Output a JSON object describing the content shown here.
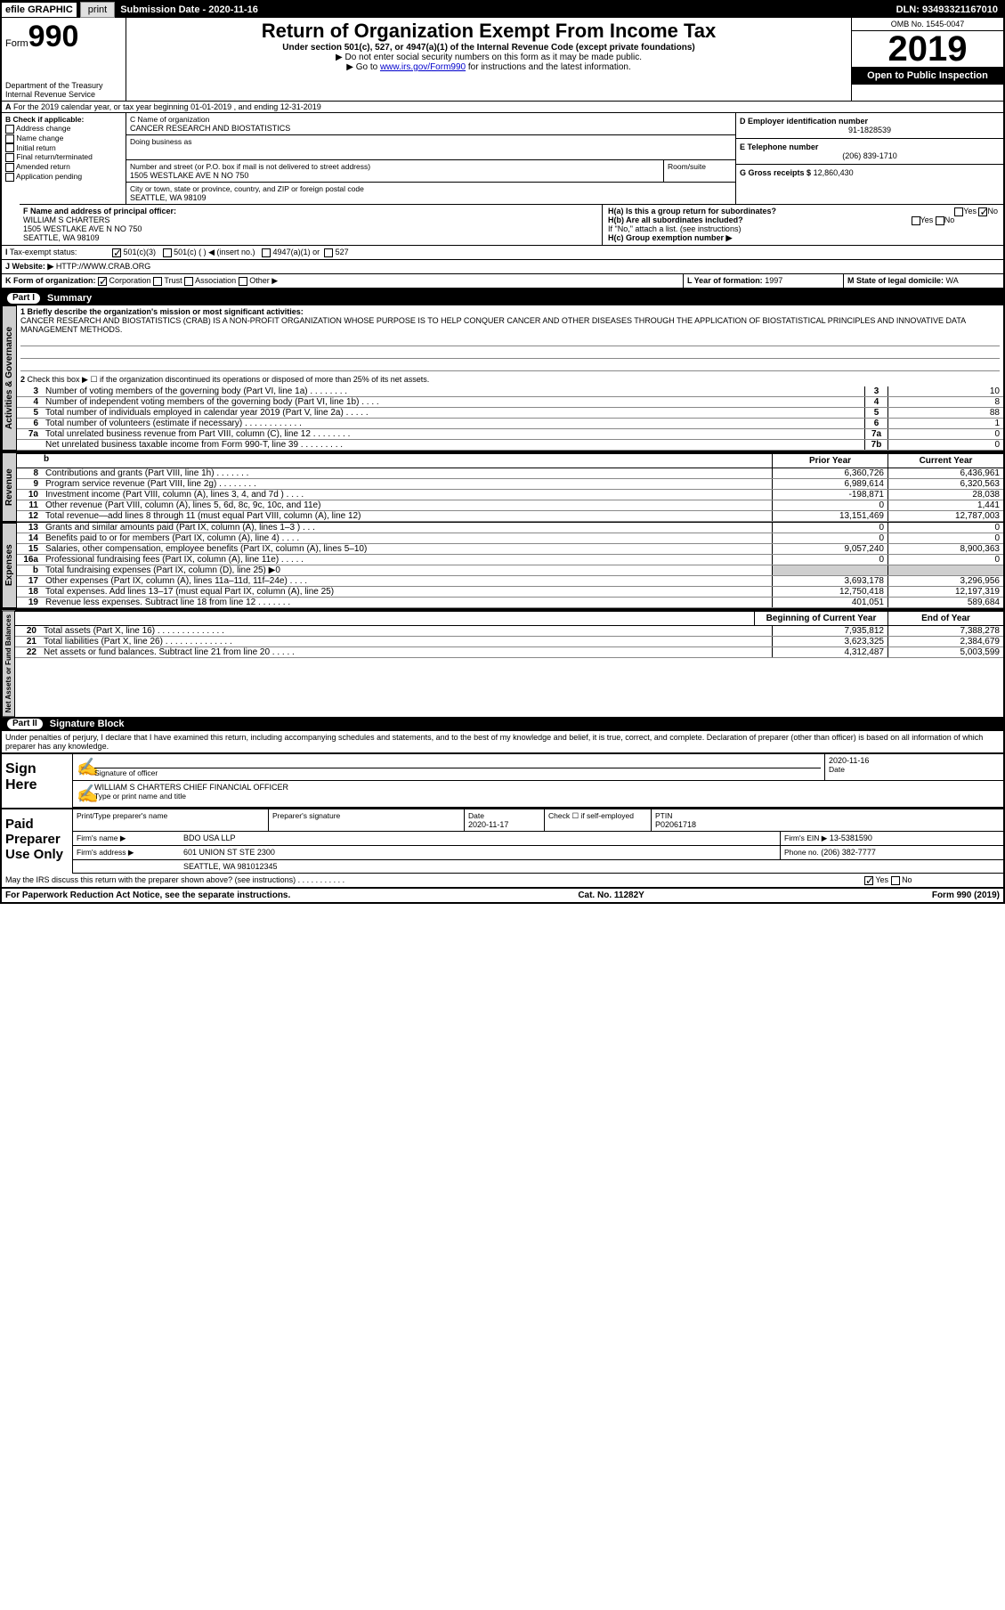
{
  "topbar": {
    "efile": "efile GRAPHIC",
    "print": "print",
    "subdate_label": "Submission Date -",
    "subdate": "2020-11-16",
    "dln": "DLN: 93493321167010"
  },
  "header": {
    "form_label": "Form",
    "form_number": "990",
    "dept": "Department of the Treasury",
    "irs": "Internal Revenue Service",
    "title": "Return of Organization Exempt From Income Tax",
    "subtitle": "Under section 501(c), 527, or 4947(a)(1) of the Internal Revenue Code (except private foundations)",
    "line1": "▶ Do not enter social security numbers on this form as it may be made public.",
    "line2a": "▶ Go to ",
    "line2_link": "www.irs.gov/Form990",
    "line2b": " for instructions and the latest information.",
    "omb": "OMB No. 1545-0047",
    "year": "2019",
    "inspection": "Open to Public Inspection"
  },
  "periodA": "For the 2019 calendar year, or tax year beginning 01-01-2019  , and ending 12-31-2019",
  "boxB": {
    "label": "B Check if applicable:",
    "items": [
      "Address change",
      "Name change",
      "Initial return",
      "Final return/terminated",
      "Amended return",
      "Application pending"
    ]
  },
  "boxC": {
    "name_label": "C Name of organization",
    "name": "CANCER RESEARCH AND BIOSTATISTICS",
    "dba_label": "Doing business as",
    "addr_label": "Number and street (or P.O. box if mail is not delivered to street address)",
    "room_label": "Room/suite",
    "addr": "1505 WESTLAKE AVE N NO 750",
    "city_label": "City or town, state or province, country, and ZIP or foreign postal code",
    "city": "SEATTLE, WA  98109"
  },
  "boxD": {
    "label": "D Employer identification number",
    "value": "91-1828539"
  },
  "boxE": {
    "label": "E Telephone number",
    "value": "(206) 839-1710"
  },
  "boxG": {
    "label": "G Gross receipts $",
    "value": "12,860,430"
  },
  "boxF": {
    "label": "F  Name and address of principal officer:",
    "name": "WILLIAM S CHARTERS",
    "addr": "1505 WESTLAKE AVE N NO 750",
    "city": "SEATTLE, WA  98109"
  },
  "boxH": {
    "a": "H(a)  Is this a group return for subordinates?",
    "b": "H(b)  Are all subordinates included?",
    "note": "If \"No,\" attach a list. (see instructions)",
    "c": "H(c)  Group exemption number ▶",
    "yes": "Yes",
    "no": "No"
  },
  "boxI": {
    "label": "Tax-exempt status:",
    "opts": [
      "501(c)(3)",
      "501(c) (  ) ◀ (insert no.)",
      "4947(a)(1) or",
      "527"
    ]
  },
  "boxJ": {
    "label": "Website: ▶",
    "value": "HTTP://WWW.CRAB.ORG"
  },
  "boxK": {
    "label": "K Form of organization:",
    "opts": [
      "Corporation",
      "Trust",
      "Association",
      "Other ▶"
    ]
  },
  "boxL": {
    "label": "L Year of formation:",
    "value": "1997"
  },
  "boxM": {
    "label": "M State of legal domicile:",
    "value": "WA"
  },
  "parts": {
    "part1": "Part I",
    "summary": "Summary",
    "part2": "Part II",
    "sigblock": "Signature Block"
  },
  "summary": {
    "line1_label": "1  Briefly describe the organization's mission or most significant activities:",
    "mission": "CANCER RESEARCH AND BIOSTATISTICS (CRAB) IS A NON-PROFIT ORGANIZATION WHOSE PURPOSE IS TO HELP CONQUER CANCER AND OTHER DISEASES THROUGH THE APPLICATION OF BIOSTATISTICAL PRINCIPLES AND INNOVATIVE DATA MANAGEMENT METHODS.",
    "line2": "Check this box ▶ ☐  if the organization discontinued its operations or disposed of more than 25% of its net assets.",
    "rows": [
      {
        "n": "3",
        "d": "Number of voting members of the governing body (Part VI, line 1a)  .   .   .   .   .   .   .   .",
        "box": "3",
        "v": "10"
      },
      {
        "n": "4",
        "d": "Number of independent voting members of the governing body (Part VI, line 1b)  .   .   .   .",
        "box": "4",
        "v": "8"
      },
      {
        "n": "5",
        "d": "Total number of individuals employed in calendar year 2019 (Part V, line 2a)  .   .   .   .   .",
        "box": "5",
        "v": "88"
      },
      {
        "n": "6",
        "d": "Total number of volunteers (estimate if necessary)   .    .    .    .    .    .    .    .    .    .    .    .",
        "box": "6",
        "v": "1"
      },
      {
        "n": "7a",
        "d": "Total unrelated business revenue from Part VIII, column (C), line 12  .   .   .   .   .   .   .   .",
        "box": "7a",
        "v": "0"
      },
      {
        "n": "",
        "d": "Net unrelated business taxable income from Form 990-T, line 39   .   .   .   .   .   .   .   .   .",
        "box": "7b",
        "v": "0"
      }
    ],
    "prior_label": "Prior Year",
    "current_label": "Current Year",
    "revenue_rows": [
      {
        "n": "8",
        "d": "Contributions and grants (Part VIII, line 1h)   .    .    .    .    .    .    .",
        "p": "6,360,726",
        "c": "6,436,961"
      },
      {
        "n": "9",
        "d": "Program service revenue (Part VIII, line 2g)   .   .   .   .   .   .   .   .",
        "p": "6,989,614",
        "c": "6,320,563"
      },
      {
        "n": "10",
        "d": "Investment income (Part VIII, column (A), lines 3, 4, and 7d )   .   .   .   .",
        "p": "-198,871",
        "c": "28,038"
      },
      {
        "n": "11",
        "d": "Other revenue (Part VIII, column (A), lines 5, 6d, 8c, 9c, 10c, and 11e)",
        "p": "0",
        "c": "1,441"
      },
      {
        "n": "12",
        "d": "Total revenue—add lines 8 through 11 (must equal Part VIII, column (A), line 12)",
        "p": "13,151,469",
        "c": "12,787,003"
      }
    ],
    "expense_rows": [
      {
        "n": "13",
        "d": "Grants and similar amounts paid (Part IX, column (A), lines 1–3 )  .   .   .",
        "p": "0",
        "c": "0"
      },
      {
        "n": "14",
        "d": "Benefits paid to or for members (Part IX, column (A), line 4)   .   .   .   .",
        "p": "0",
        "c": "0"
      },
      {
        "n": "15",
        "d": "Salaries, other compensation, employee benefits (Part IX, column (A), lines 5–10)",
        "p": "9,057,240",
        "c": "8,900,363"
      },
      {
        "n": "16a",
        "d": "Professional fundraising fees (Part IX, column (A), line 11e)  .   .   .   .   .",
        "p": "0",
        "c": "0"
      },
      {
        "n": "b",
        "d": "Total fundraising expenses (Part IX, column (D), line 25) ▶0",
        "p": "",
        "c": "",
        "shade": true
      },
      {
        "n": "17",
        "d": "Other expenses (Part IX, column (A), lines 11a–11d, 11f–24e)  .   .   .   .",
        "p": "3,693,178",
        "c": "3,296,956"
      },
      {
        "n": "18",
        "d": "Total expenses. Add lines 13–17 (must equal Part IX, column (A), line 25)",
        "p": "12,750,418",
        "c": "12,197,319"
      },
      {
        "n": "19",
        "d": "Revenue less expenses. Subtract line 18 from line 12  .   .   .   .   .   .   .",
        "p": "401,051",
        "c": "589,684"
      }
    ],
    "begin_label": "Beginning of Current Year",
    "end_label": "End of Year",
    "balance_rows": [
      {
        "n": "20",
        "d": "Total assets (Part X, line 16)  .    .    .    .    .    .    .    .    .    .    .    .    .    .",
        "p": "7,935,812",
        "c": "7,388,278"
      },
      {
        "n": "21",
        "d": "Total liabilities (Part X, line 26)   .   .   .   .   .   .   .   .   .   .   .   .   .   .",
        "p": "3,623,325",
        "c": "2,384,679"
      },
      {
        "n": "22",
        "d": "Net assets or fund balances. Subtract line 21 from line 20  .    .    .    .    .",
        "p": "4,312,487",
        "c": "5,003,599"
      }
    ],
    "tabs": {
      "gov": "Activities & Governance",
      "rev": "Revenue",
      "exp": "Expenses",
      "net": "Net Assets or Fund Balances"
    }
  },
  "penalties": "Under penalties of perjury, I declare that I have examined this return, including accompanying schedules and statements, and to the best of my knowledge and belief, it is true, correct, and complete. Declaration of preparer (other than officer) is based on all information of which preparer has any knowledge.",
  "sign": {
    "here": "Sign Here",
    "sig_officer": "Signature of officer",
    "date": "Date",
    "date_val": "2020-11-16",
    "name": "WILLIAM S CHARTERS  CHIEF FINANCIAL OFFICER",
    "name_label": "Type or print name and title"
  },
  "preparer": {
    "title": "Paid Preparer Use Only",
    "print_label": "Print/Type preparer's name",
    "sig_label": "Preparer's signature",
    "date_label": "Date",
    "date": "2020-11-17",
    "check_label": "Check ☐ if self-employed",
    "ptin_label": "PTIN",
    "ptin": "P02061718",
    "firm_name_label": "Firm's name   ▶",
    "firm_name": "BDO USA LLP",
    "firm_ein_label": "Firm's EIN ▶",
    "firm_ein": "13-5381590",
    "firm_addr_label": "Firm's address ▶",
    "firm_addr": "601 UNION ST STE 2300",
    "firm_city": "SEATTLE, WA  981012345",
    "phone_label": "Phone no.",
    "phone": "(206) 382-7777"
  },
  "discuss": "May the IRS discuss this return with the preparer shown above? (see instructions)   .    .    .    .    .    .    .    .    .    .    .",
  "footer": {
    "paperwork": "For Paperwork Reduction Act Notice, see the separate instructions.",
    "catno": "Cat. No. 11282Y",
    "formno": "Form 990 (2019)"
  },
  "yes": "Yes",
  "no": "No"
}
